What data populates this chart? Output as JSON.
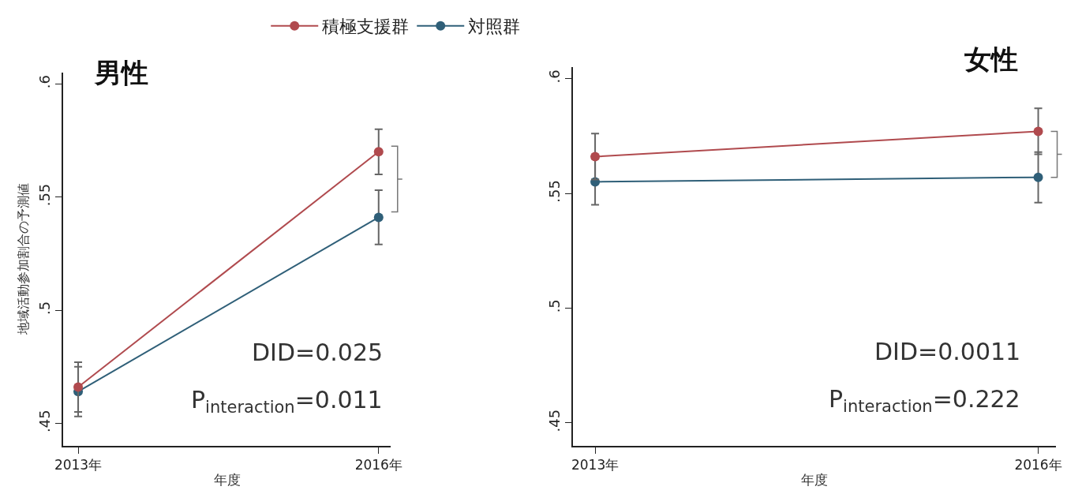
{
  "chart_data": [
    {
      "type": "line",
      "title": "男性",
      "xlabel": "年度",
      "ylabel": "地域活動参加割合の予測値",
      "categories": [
        "2013年",
        "2016年"
      ],
      "series": [
        {
          "name": "積極支援群",
          "color": "#b04a4e",
          "values": [
            0.466,
            0.57
          ],
          "errors": [
            0.011,
            0.01
          ]
        },
        {
          "name": "対照群",
          "color": "#2f5f78",
          "values": [
            0.464,
            0.541
          ],
          "errors": [
            0.011,
            0.012
          ]
        }
      ],
      "ylim": [
        0.44,
        0.605
      ],
      "yticks": [
        {
          "value": 0.45,
          "label": ".45"
        },
        {
          "value": 0.5,
          "label": ".5"
        },
        {
          "value": 0.55,
          "label": ".55"
        },
        {
          "value": 0.6,
          "label": ".6"
        }
      ],
      "annotations": [
        "DID=0.025",
        "P$_{interaction}$=0.011"
      ],
      "grid": false,
      "legend": "top",
      "marker": "circle",
      "line_style": "solid"
    },
    {
      "type": "line",
      "title": "女性",
      "xlabel": "年度",
      "categories": [
        "2013年",
        "2016年"
      ],
      "series": [
        {
          "color": "#b04a4e",
          "values": [
            0.566,
            0.577
          ],
          "errors": [
            0.01,
            0.01
          ]
        },
        {
          "color": "#2f5f78",
          "values": [
            0.555,
            0.557
          ],
          "errors": [
            0.01,
            0.011
          ]
        }
      ],
      "ylim": [
        0.44,
        0.605
      ],
      "yticks": [
        {
          "value": 0.45,
          "label": ".45"
        },
        {
          "value": 0.5,
          "label": ".5"
        },
        {
          "value": 0.55,
          "label": ".55"
        },
        {
          "value": 0.6,
          "label": ".6"
        }
      ],
      "annotations": [
        "DID=0.0011",
        "P$_{interaction}$=0.222"
      ],
      "grid": false,
      "legend": false,
      "marker": "circle",
      "line_style": "solid"
    }
  ]
}
